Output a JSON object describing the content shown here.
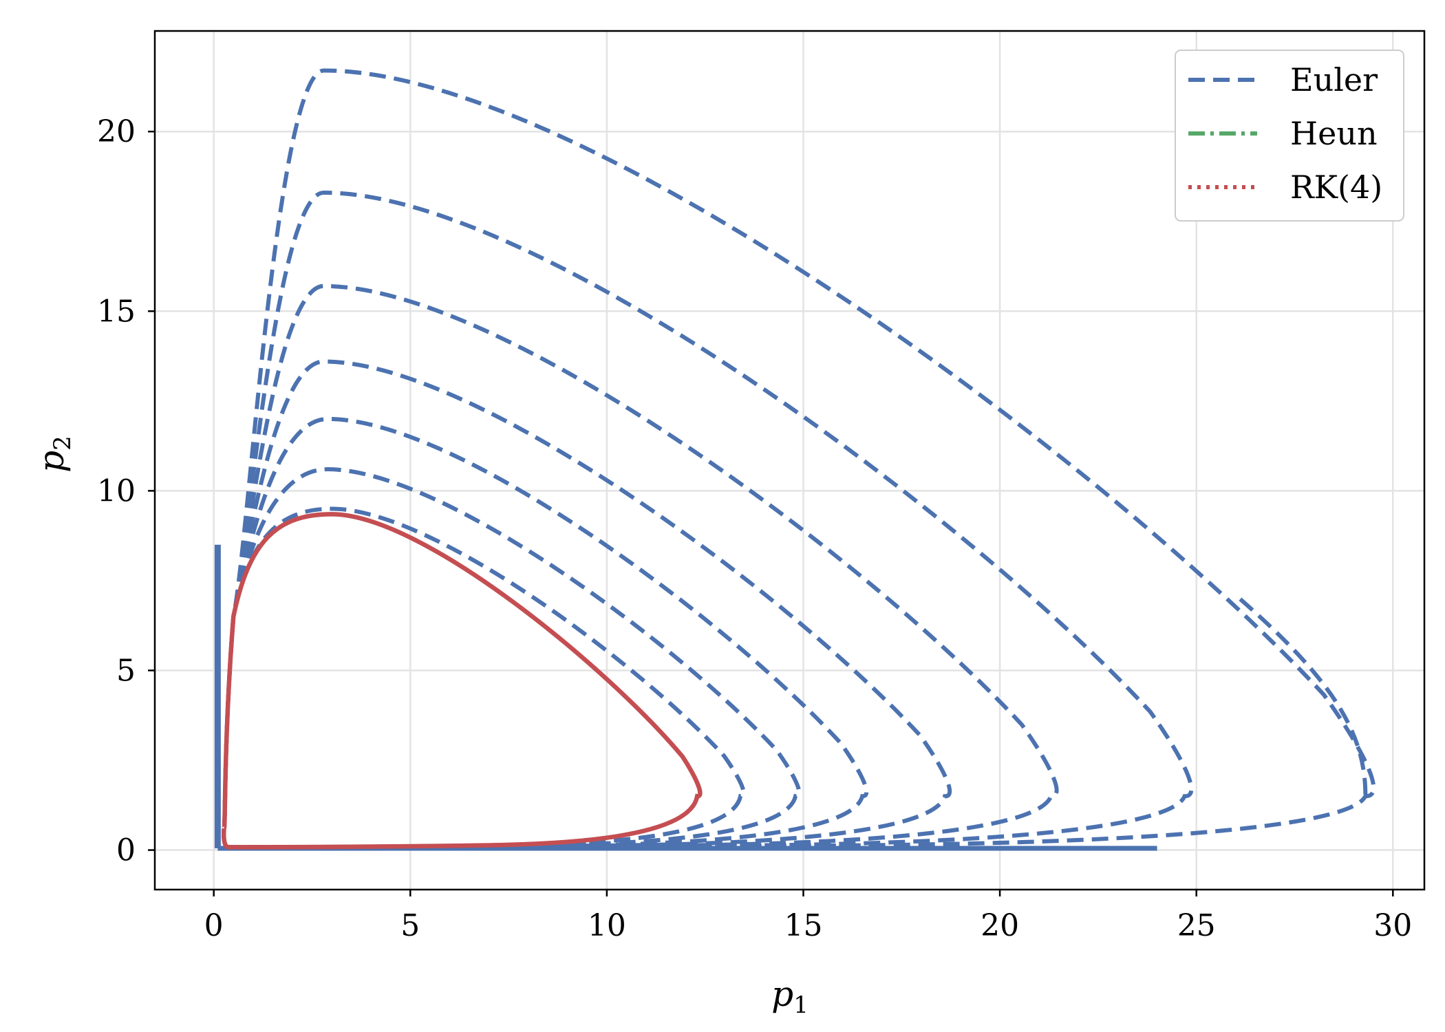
{
  "chart_data": {
    "type": "line",
    "title": "",
    "xlabel": "p",
    "xlabel_sub": "1",
    "ylabel": "p",
    "ylabel_sub": "2",
    "xlim": [
      -1.5,
      30.8
    ],
    "ylim": [
      -1.1,
      22.8
    ],
    "xticks": [
      0,
      5,
      10,
      15,
      20,
      25,
      30
    ],
    "yticks": [
      0,
      5,
      10,
      15,
      20
    ],
    "grid": true,
    "legend_position": "top-right",
    "series": [
      {
        "name": "Euler",
        "color": "#4c72b0",
        "dash": "dashed",
        "description_points": "outward spiral loops",
        "loops": [
          {
            "peak": [
              3.0,
              9.5
            ],
            "xmax": 13.4
          },
          {
            "peak": [
              2.9,
              10.6
            ],
            "xmax": 14.8
          },
          {
            "peak": [
              2.9,
              12.0
            ],
            "xmax": 16.5
          },
          {
            "peak": [
              2.8,
              13.6
            ],
            "xmax": 18.6
          },
          {
            "peak": [
              2.8,
              15.7
            ],
            "xmax": 21.3
          },
          {
            "peak": [
              2.8,
              18.3
            ],
            "xmax": 24.7
          },
          {
            "peak": [
              2.8,
              21.7
            ],
            "xmax": 29.3
          }
        ],
        "end_point": [
          26.1,
          7.0
        ]
      },
      {
        "name": "Heun",
        "color": "#55a868",
        "dash": "dashdot",
        "loops": [
          {
            "peak": [
              3.0,
              9.35
            ],
            "xmax": 12.3
          }
        ]
      },
      {
        "name": "RK(4)",
        "color": "#c44e52",
        "dash": "dotted",
        "loops": [
          {
            "peak": [
              3.0,
              9.35
            ],
            "xmax": 12.3
          }
        ]
      }
    ]
  }
}
